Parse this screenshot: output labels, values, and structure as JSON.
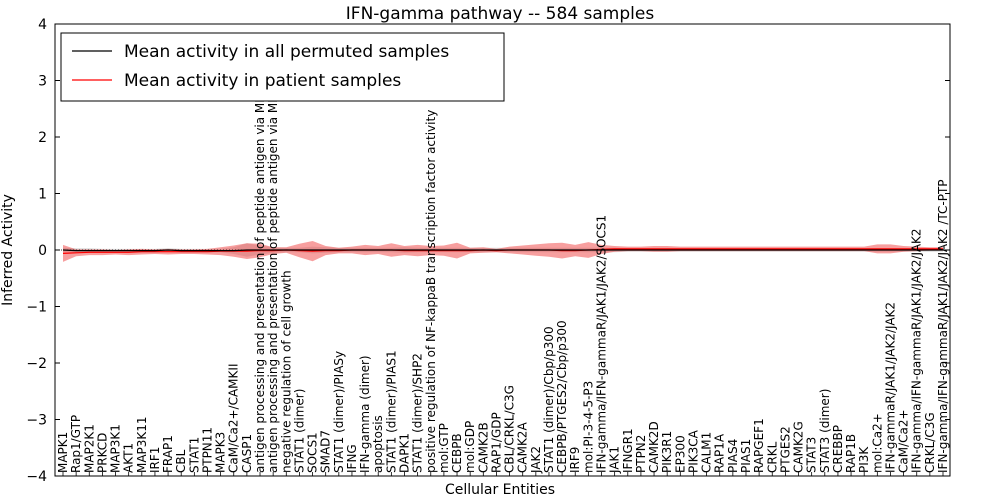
{
  "chart_data": {
    "type": "line",
    "title": "IFN-gamma pathway -- 584 samples",
    "xlabel": "Cellular Entities",
    "ylabel": "Inferred Activity",
    "ylim": [
      -4,
      4
    ],
    "yticks": [
      "4",
      "3",
      "2",
      "1",
      "0",
      "−1",
      "−2",
      "−3",
      "−4"
    ],
    "ytick_values": [
      4,
      3,
      2,
      1,
      0,
      -1,
      -2,
      -3,
      -4
    ],
    "legend": {
      "position": "top-left",
      "entries": [
        "Mean activity in all permuted samples",
        "Mean activity in patient samples"
      ]
    },
    "categories": [
      "MAPK1",
      "Rap1/GTP",
      "MAP2K1",
      "PRKCD",
      "MAP3K1",
      "AKT1",
      "MAP3K11",
      "IRF1",
      "FRAP1",
      "CBL",
      "STAT1",
      "PTPN11",
      "MAPK3",
      "CaM/Ca2+/CAMKII",
      "CASP1",
      "antigen processing and presentation of peptide antigen via MHC class I",
      "antigen processing and presentation of peptide antigen via MHC class II",
      "negative regulation of cell growth",
      "STAT1 (dimer)",
      "SOCS1",
      "SMAD7",
      "STAT1 (dimer)/PIASy",
      "IFNG",
      "IFN-gamma (dimer)",
      "apoptosis",
      "STAT1 (dimer)/PIAS1",
      "DAPK1",
      "STAT1 (dimer)/SHP2",
      "positive regulation of NF-kappaB transcription factor activity",
      "mol:GTP",
      "CEBPB",
      "mol:GDP",
      "CAMK2B",
      "RAP1/GDP",
      "CBL/CRKL/C3G",
      "CAMK2A",
      "JAK2",
      "STAT1 (dimer)/Cbp/p300",
      "CEBPB/PTGES2/Cbp/p300",
      "IRF9",
      "mol:PI-3-4-5-P3",
      "IFN-gamma/IFN-gammaR/JAK1/JAK2/SOCS1",
      "JAK1",
      "IFNGR1",
      "PTPN2",
      "CAMK2D",
      "PIK3R1",
      "EP300",
      "PIK3CA",
      "CALM1",
      "RAP1A",
      "PIAS4",
      "PIAS1",
      "RAPGEF1",
      "CRKL",
      "PTGES2",
      "CAMK2G",
      "STAT3",
      "STAT3 (dimer)",
      "CREBBP",
      "RAP1B",
      "PI3K",
      "mol:Ca2+",
      "IFN-gammaR/JAK1/JAK2/JAK2",
      "CaM/Ca2+",
      "IFN-gamma/IFN-gammaR/JAK1/JAK2/JAK2",
      "CRKL/C3G",
      "IFN-gamma/IFN-gammaR/JAK1/JAK2/JAK2 /TC-PTP"
    ],
    "series": [
      {
        "name": "Mean activity in all permuted samples",
        "color": "#000000",
        "values": [
          0,
          -0.01,
          -0.01,
          -0.01,
          -0.01,
          -0.01,
          -0.01,
          -0.01,
          0,
          -0.01,
          -0.01,
          -0.01,
          -0.01,
          -0.01,
          0,
          0,
          0,
          0,
          0,
          0,
          0,
          0,
          0,
          0,
          0,
          0,
          0,
          0,
          0,
          0,
          0,
          0,
          0,
          0,
          0,
          0,
          0,
          0,
          0,
          0,
          0,
          0,
          0,
          0,
          0,
          0,
          0,
          0,
          0,
          0,
          0,
          0,
          0,
          0,
          0,
          0,
          0,
          0,
          0,
          0,
          0,
          0,
          0,
          0,
          0,
          0,
          0,
          0
        ],
        "band": [
          0.04,
          0.04,
          0.04,
          0.03,
          0.03,
          0.03,
          0.03,
          0.03,
          0.03,
          0.03,
          0.03,
          0.03,
          0.03,
          0.06,
          0.12,
          0.08,
          0.05,
          0.04,
          0.04,
          0.06,
          0.05,
          0.04,
          0.04,
          0.04,
          0.04,
          0.04,
          0.05,
          0.04,
          0.04,
          0.04,
          0.04,
          0.04,
          0.04,
          0.04,
          0.04,
          0.04,
          0.04,
          0.04,
          0.04,
          0.04,
          0.04,
          0.04,
          0.04,
          0.03,
          0.03,
          0.03,
          0.03,
          0.03,
          0.03,
          0.03,
          0.03,
          0.03,
          0.03,
          0.03,
          0.03,
          0.03,
          0.03,
          0.03,
          0.03,
          0.03,
          0.03,
          0.03,
          0.03,
          0.03,
          0.03,
          0.03,
          0.03,
          0.03
        ]
      },
      {
        "name": "Mean activity in patient samples",
        "color": "#ff0000",
        "values": [
          -0.06,
          -0.05,
          -0.04,
          -0.04,
          -0.04,
          -0.04,
          -0.03,
          -0.03,
          -0.03,
          -0.03,
          -0.03,
          -0.03,
          -0.02,
          -0.02,
          -0.02,
          -0.01,
          -0.01,
          0,
          -0.01,
          -0.02,
          -0.01,
          -0.01,
          0,
          0,
          0,
          0,
          -0.01,
          -0.01,
          -0.01,
          -0.01,
          -0.01,
          -0.01,
          0,
          -0.01,
          0,
          0,
          0,
          0,
          -0.01,
          -0.01,
          0,
          0.01,
          0.02,
          0.02,
          0.02,
          0.02,
          0.02,
          0.02,
          0.02,
          0.02,
          0.02,
          0.02,
          0.02,
          0.02,
          0.02,
          0.02,
          0.02,
          0.02,
          0.02,
          0.02,
          0.02,
          0.02,
          0.02,
          0.02,
          0.02,
          0.02,
          0.02,
          0.02
        ],
        "band": [
          0.15,
          0.06,
          0.05,
          0.05,
          0.04,
          0.05,
          0.05,
          0.04,
          0.05,
          0.04,
          0.04,
          0.05,
          0.07,
          0.1,
          0.14,
          0.12,
          0.06,
          0.05,
          0.12,
          0.18,
          0.08,
          0.05,
          0.06,
          0.09,
          0.07,
          0.12,
          0.08,
          0.1,
          0.08,
          0.09,
          0.14,
          0.05,
          0.05,
          0.03,
          0.06,
          0.08,
          0.1,
          0.12,
          0.14,
          0.1,
          0.14,
          0.08,
          0.05,
          0.04,
          0.04,
          0.05,
          0.05,
          0.04,
          0.04,
          0.04,
          0.04,
          0.04,
          0.04,
          0.04,
          0.04,
          0.04,
          0.04,
          0.04,
          0.04,
          0.04,
          0.04,
          0.04,
          0.08,
          0.08,
          0.05,
          0.04,
          0.03,
          0.03
        ]
      }
    ]
  }
}
